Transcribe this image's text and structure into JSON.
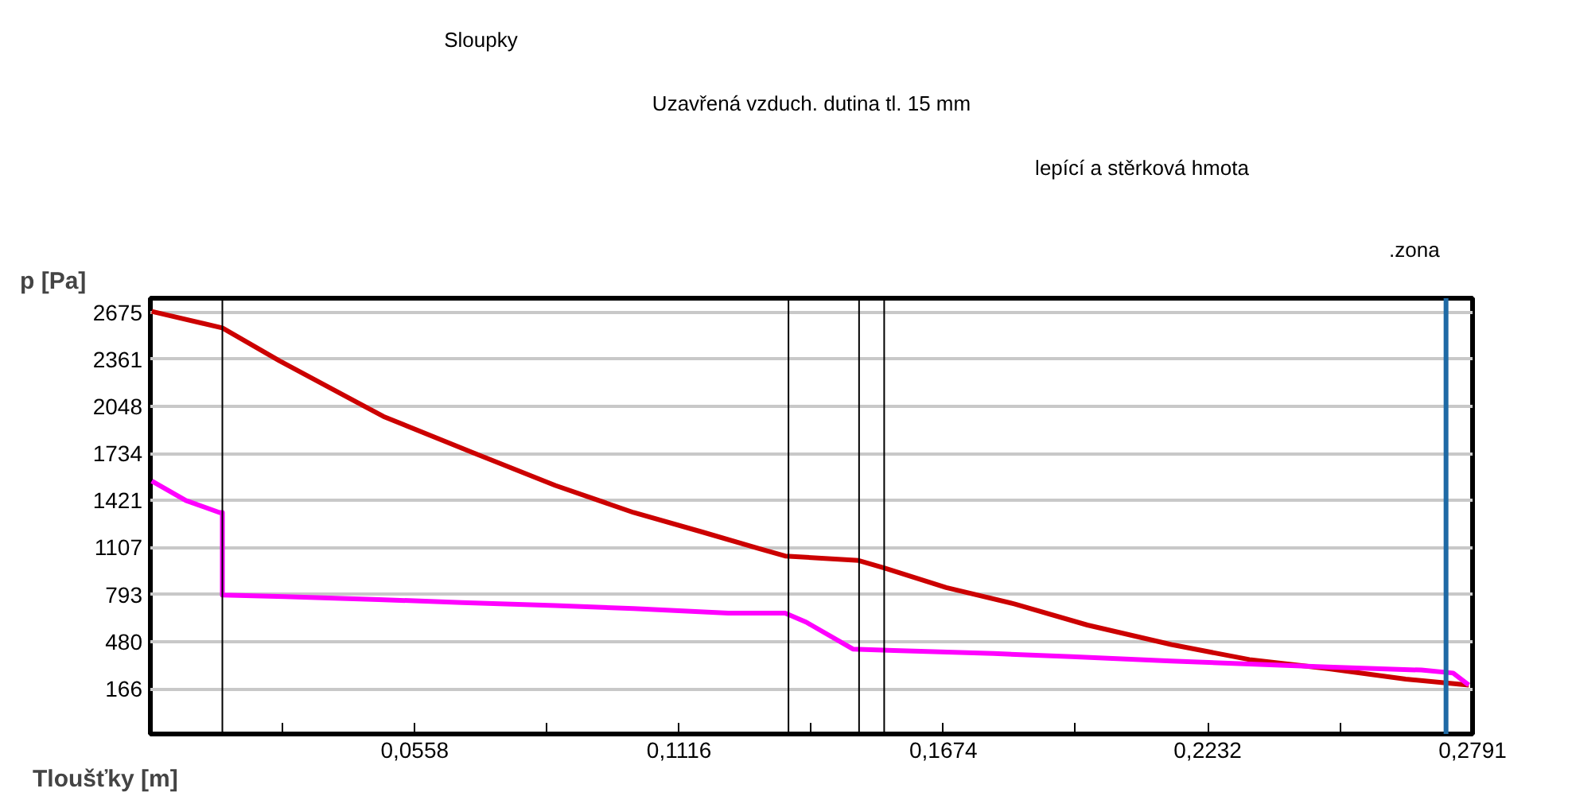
{
  "chart_data": {
    "type": "line",
    "xlabel": "Tloušťky [m]",
    "ylabel": "p [Pa]",
    "xlim": [
      0,
      0.2791
    ],
    "ylim": [
      -136,
      2768
    ],
    "xticks": [
      {
        "value": 0.0279,
        "label": null
      },
      {
        "value": 0.0558,
        "label": "0,0558"
      },
      {
        "value": 0.0837,
        "label": null
      },
      {
        "value": 0.1116,
        "label": "0,1116"
      },
      {
        "value": 0.1395,
        "label": null
      },
      {
        "value": 0.1674,
        "label": "0,1674"
      },
      {
        "value": 0.1953,
        "label": null
      },
      {
        "value": 0.2232,
        "label": "0,2232"
      },
      {
        "value": 0.2512,
        "label": null
      },
      {
        "value": 0.2791,
        "label": "0,2791"
      }
    ],
    "yticks": [
      166,
      480,
      793,
      1107,
      1421,
      1734,
      2048,
      2361,
      2675
    ],
    "grid": "y",
    "series": [
      {
        "color": "#cc0000",
        "x": [
          0.0003,
          0.0152,
          0.0273,
          0.0492,
          0.068,
          0.0855,
          0.102,
          0.1165,
          0.1285,
          0.134,
          0.1495,
          0.155,
          0.168,
          0.1825,
          0.1978,
          0.2155,
          0.232,
          0.2485,
          0.265,
          0.2783
        ],
        "values": [
          2680,
          2570,
          2350,
          1980,
          1740,
          1520,
          1340,
          1210,
          1100,
          1050,
          1020,
          970,
          840,
          730,
          590,
          460,
          360,
          300,
          230,
          190
        ]
      },
      {
        "color": "#ff00ff",
        "x": [
          0.0003,
          0.0075,
          0.0146,
          0.0152,
          0.0152,
          0.0284,
          0.0482,
          0.0658,
          0.0855,
          0.102,
          0.122,
          0.134,
          0.1384,
          0.1483,
          0.157,
          0.178,
          0.1945,
          0.2155,
          0.232,
          0.2485,
          0.2683,
          0.275,
          0.2783
        ],
        "values": [
          1550,
          1420,
          1340,
          1340,
          790,
          780,
          760,
          740,
          720,
          700,
          670,
          670,
          610,
          430,
          420,
          400,
          380,
          350,
          330,
          310,
          290,
          270,
          190
        ]
      }
    ],
    "ref_lines": [
      {
        "axis": "x",
        "value": 0.0152,
        "color": "#000000"
      },
      {
        "axis": "x",
        "value": 0.1347,
        "color": "#000000"
      },
      {
        "axis": "x",
        "value": 0.1496,
        "color": "#000000"
      },
      {
        "axis": "x",
        "value": 0.1549,
        "color": "#000000"
      },
      {
        "axis": "x",
        "value": 0.2735,
        "color": "#1f6aa5",
        "label": ".zona"
      }
    ],
    "annotations": [
      "Sloupky",
      "Uzavřená vzduch. dutina tl. 15 mm",
      "lepící a stěrková hmota"
    ]
  }
}
